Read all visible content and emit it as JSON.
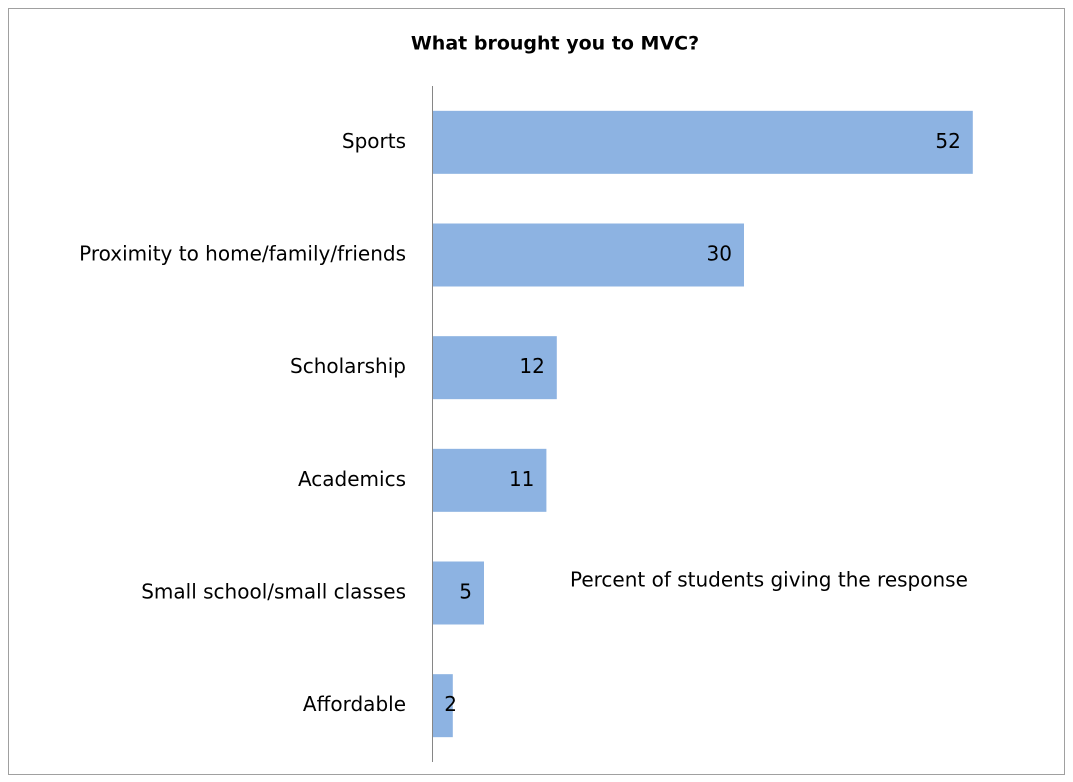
{
  "chart_data": {
    "type": "bar",
    "orientation": "horizontal",
    "title": "What brought you to MVC?",
    "annotation": "Percent of students giving the response",
    "categories": [
      "Sports",
      "Proximity to home/family/friends",
      "Scholarship",
      "Academics",
      "Small school/small classes",
      "Affordable"
    ],
    "values": [
      52,
      30,
      12,
      11,
      5,
      2
    ],
    "color": "#8db3e2",
    "xlim": [
      0,
      55
    ]
  }
}
